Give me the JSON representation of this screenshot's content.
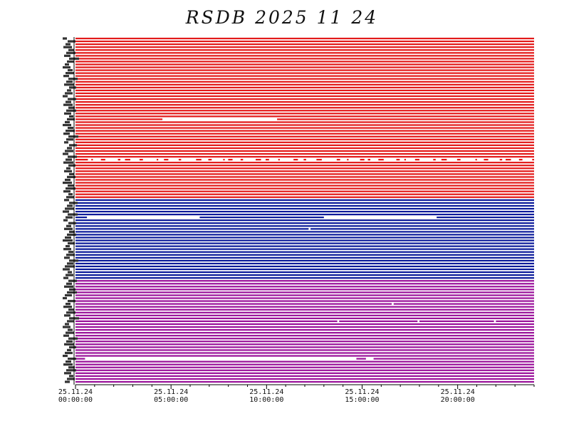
{
  "chart_data": {
    "type": "heatmap",
    "title": "RSDB  2025  11  24",
    "xlabel": "",
    "ylabel": "",
    "x_range_hours": [
      0,
      24
    ],
    "x_ticks": [
      {
        "hour": 0,
        "date": "25.11.24",
        "time": "00:00:00"
      },
      {
        "hour": 5,
        "date": "25.11.24",
        "time": "05:00:00"
      },
      {
        "hour": 10,
        "date": "25.11.24",
        "time": "10:00:00"
      },
      {
        "hour": 15,
        "date": "25.11.24",
        "time": "15:00:00"
      },
      {
        "hour": 20,
        "date": "25.11.24",
        "time": "20:00:00"
      }
    ],
    "grid": false,
    "legend": "none",
    "groups": [
      {
        "color": "#e31a1a",
        "row_count": 56
      },
      {
        "color": "#0b1a9a",
        "row_count": 28
      },
      {
        "color": "#9a119a",
        "row_count": 36
      }
    ],
    "gaps": [
      {
        "row": 28,
        "start": 4.55,
        "end": 10.55
      },
      {
        "row": 42,
        "start": 0.65,
        "end": 23.9,
        "dashed": true
      },
      {
        "row": 62,
        "start": 0.6,
        "end": 6.5
      },
      {
        "row": 62,
        "start": 13.0,
        "end": 18.9
      },
      {
        "row": 66,
        "start": 12.2,
        "end": 12.3
      },
      {
        "row": 92,
        "start": 16.55,
        "end": 16.65
      },
      {
        "row": 98,
        "start": 13.7,
        "end": 13.8
      },
      {
        "row": 98,
        "start": 17.9,
        "end": 18.0
      },
      {
        "row": 98,
        "start": 21.9,
        "end": 22.0
      },
      {
        "row": 111,
        "start": 0.5,
        "end": 14.7
      },
      {
        "row": 111,
        "start": 15.2,
        "end": 15.6
      }
    ]
  }
}
